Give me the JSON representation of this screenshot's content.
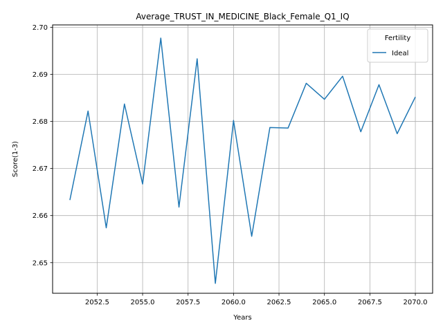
{
  "chart_data": {
    "type": "line",
    "title": "Average_TRUST_IN_MEDICINE_Black_Female_Q1_IQ",
    "xlabel": "Years",
    "ylabel": "Score(1-3)",
    "xlim": [
      2050.05,
      2070.95
    ],
    "ylim": [
      2.6435,
      2.7005
    ],
    "xticks": [
      2052.5,
      2055.0,
      2057.5,
      2060.0,
      2062.5,
      2065.0,
      2067.5,
      2070.0
    ],
    "xtick_labels": [
      "2052.5",
      "2055.0",
      "2057.5",
      "2060.0",
      "2062.5",
      "2065.0",
      "2067.5",
      "2070.0"
    ],
    "yticks": [
      2.65,
      2.66,
      2.67,
      2.68,
      2.69,
      2.7
    ],
    "ytick_labels": [
      "2.65",
      "2.66",
      "2.67",
      "2.68",
      "2.69",
      "2.70"
    ],
    "grid": true,
    "legend": {
      "title": "Fertility",
      "placement": "top-right"
    },
    "x": [
      2051,
      2052,
      2053,
      2054,
      2055,
      2056,
      2057,
      2058,
      2059,
      2060,
      2061,
      2062,
      2063,
      2064,
      2065,
      2066,
      2067,
      2068,
      2069,
      2070
    ],
    "series": [
      {
        "name": "Ideal",
        "color": "#1f77b4",
        "values": [
          2.6633,
          2.6822,
          2.6574,
          2.6837,
          2.6667,
          2.6977,
          2.6618,
          2.6933,
          2.6456,
          2.6802,
          2.6556,
          2.6787,
          2.6786,
          2.6881,
          2.6847,
          2.6896,
          2.6778,
          2.6878,
          2.6774,
          2.6852
        ]
      }
    ]
  }
}
